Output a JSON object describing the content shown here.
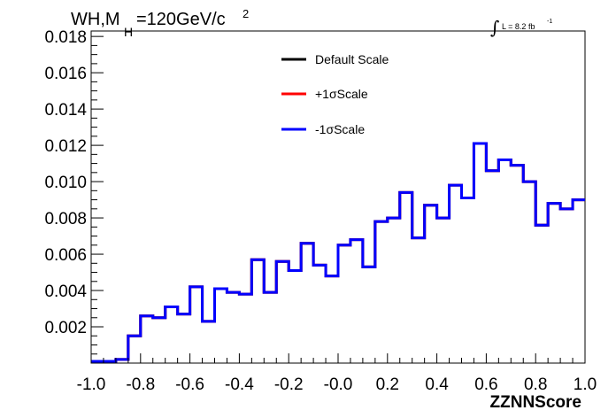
{
  "chart_data": {
    "type": "line",
    "title": {
      "main": "WH,M",
      "sub": "H",
      "tail": "=120GeV/c",
      "sup": "2"
    },
    "lumi": {
      "integral": "∫",
      "text": "L = 8.2 fb",
      "sup": "-1"
    },
    "xlabel": "ZZNNScore",
    "ylabel": "",
    "xlim": [
      -1.0,
      1.0
    ],
    "ylim": [
      0.0,
      0.0183
    ],
    "xticks": [
      -1.0,
      -0.8,
      -0.6,
      -0.4,
      -0.2,
      0.0,
      0.2,
      0.4,
      0.6,
      0.8,
      1.0
    ],
    "xtick_labels": [
      "-1.0",
      "-0.8",
      "-0.6",
      "-0.4",
      "-0.2",
      "-0.0",
      "0.2",
      "0.4",
      "0.6",
      "0.8",
      "1.0"
    ],
    "yticks": [
      0.002,
      0.004,
      0.006,
      0.008,
      0.01,
      0.012,
      0.014,
      0.016,
      0.018
    ],
    "ytick_labels": [
      "0.002",
      "0.004",
      "0.006",
      "0.008",
      "0.010",
      "0.012",
      "0.014",
      "0.016",
      "0.018"
    ],
    "bin_edges": [
      -1.0,
      -0.95,
      -0.9,
      -0.85,
      -0.8,
      -0.75,
      -0.7,
      -0.65,
      -0.6,
      -0.55,
      -0.5,
      -0.45,
      -0.4,
      -0.35,
      -0.3,
      -0.25,
      -0.2,
      -0.15,
      -0.1,
      -0.05,
      0.0,
      0.05,
      0.1,
      0.15,
      0.2,
      0.25,
      0.3,
      0.35,
      0.4,
      0.45,
      0.5,
      0.55,
      0.6,
      0.65,
      0.7,
      0.75,
      0.8,
      0.85,
      0.9,
      0.95,
      1.0
    ],
    "series": [
      {
        "name": "Default Scale",
        "color": "#000000",
        "values": [
          0.0001,
          0.0001,
          0.0002,
          0.0015,
          0.0026,
          0.0025,
          0.0031,
          0.0027,
          0.0042,
          0.0023,
          0.0041,
          0.0039,
          0.0038,
          0.0057,
          0.0039,
          0.0056,
          0.0051,
          0.0066,
          0.0054,
          0.0048,
          0.0065,
          0.0068,
          0.0053,
          0.0078,
          0.008,
          0.0094,
          0.0069,
          0.0087,
          0.008,
          0.0098,
          0.0091,
          0.0121,
          0.0106,
          0.0112,
          0.0109,
          0.01,
          0.0076,
          0.0088,
          0.0085,
          0.009
        ]
      },
      {
        "name": "+1σScale",
        "color": "#ff0000",
        "values": [
          0.0001,
          0.0001,
          0.0002,
          0.0015,
          0.0026,
          0.0025,
          0.0031,
          0.0027,
          0.0042,
          0.0023,
          0.0041,
          0.0039,
          0.0038,
          0.0057,
          0.0039,
          0.0056,
          0.0051,
          0.0066,
          0.0054,
          0.0048,
          0.0065,
          0.0068,
          0.0053,
          0.0078,
          0.008,
          0.0094,
          0.0069,
          0.0087,
          0.008,
          0.0098,
          0.0091,
          0.0121,
          0.0106,
          0.0112,
          0.0109,
          0.01,
          0.0076,
          0.0088,
          0.0085,
          0.009
        ]
      },
      {
        "name": "-1σScale",
        "color": "#0000ff",
        "values": [
          0.0001,
          0.0001,
          0.0002,
          0.0015,
          0.0026,
          0.0025,
          0.0031,
          0.0027,
          0.0042,
          0.0023,
          0.0041,
          0.0039,
          0.0038,
          0.0057,
          0.0039,
          0.0056,
          0.0051,
          0.0066,
          0.0054,
          0.0048,
          0.0065,
          0.0068,
          0.0053,
          0.0078,
          0.008,
          0.0094,
          0.0069,
          0.0087,
          0.008,
          0.0098,
          0.0091,
          0.0121,
          0.0106,
          0.0112,
          0.0109,
          0.01,
          0.0076,
          0.0088,
          0.0085,
          0.009
        ]
      }
    ],
    "legend": {
      "placement": "top-center",
      "entries": [
        "Default Scale",
        "+1σScale",
        "-1σScale"
      ]
    },
    "grid": false
  }
}
